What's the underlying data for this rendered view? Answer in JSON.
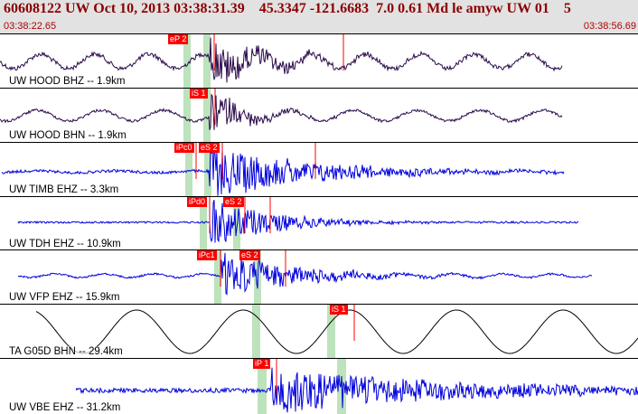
{
  "header": {
    "title": "60608122 UW Oct 10, 2013 03:38:31.39    45.3347 -121.6683  7.0 0.61 Md le amyw UW 01    5",
    "time_start": "03:38:22.65",
    "time_end": "03:38:56.69"
  },
  "colors": {
    "header_bg": "#e2e2e2",
    "title_text": "#8b0000",
    "trace_dark": "#2a0a4a",
    "trace_blue": "#0000dd",
    "trace_black": "#000000",
    "pick_red": "#ff0000",
    "window_green": "#bde3bd"
  },
  "traces": [
    {
      "label": "UW HOOD BHZ -- 1.9km",
      "picks": [
        "eP 2"
      ],
      "color": "dark"
    },
    {
      "label": "UW HOOD BHN -- 1.9km",
      "picks": [
        "iS 1"
      ],
      "color": "dark"
    },
    {
      "label": "UW TIMB EHZ -- 3.3km",
      "picks": [
        "iPc0",
        "eS 2"
      ],
      "color": "blue"
    },
    {
      "label": "UW TDH EHZ -- 10.9km",
      "picks": [
        "iPd0",
        "eS 2"
      ],
      "color": "blue"
    },
    {
      "label": "UW VFP EHZ -- 15.9km",
      "picks": [
        "iPc1",
        "eS 2"
      ],
      "color": "blue"
    },
    {
      "label": "TA G05D BHN -- 29.4km",
      "picks": [
        "iS 1"
      ],
      "color": "black"
    },
    {
      "label": "UW VBE EHZ -- 31.2km",
      "picks": [
        "iP 1"
      ],
      "color": "blue"
    }
  ]
}
